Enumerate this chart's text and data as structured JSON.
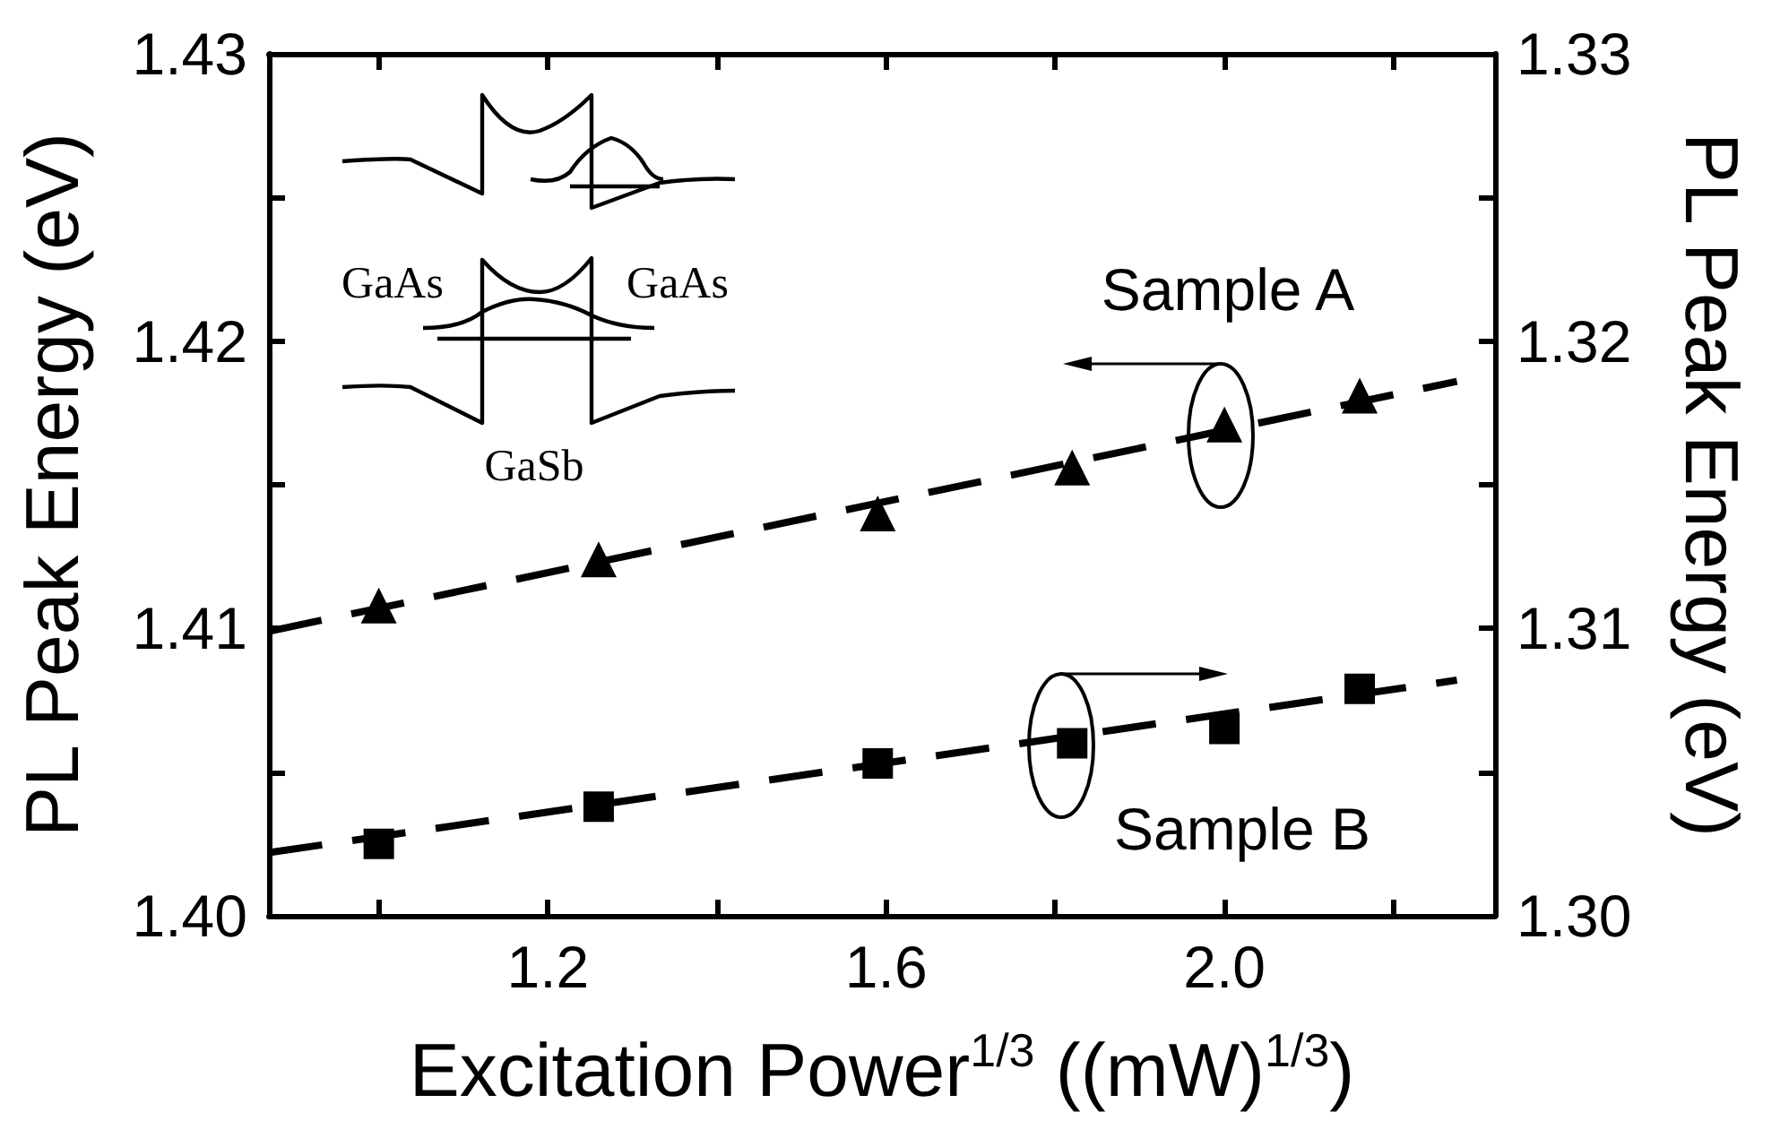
{
  "chart_data": {
    "type": "scatter",
    "xlabel": "Excitation Power$^{1/3}$ ((mW)$^{1/3}$)",
    "ylabel": "PL Peak Energy (eV)",
    "y2label": "PL Peak Energy (eV)",
    "xlim": [
      0.87,
      2.32
    ],
    "xticks": [
      {
        "value": 1.0,
        "label": null
      },
      1.2,
      {
        "value": 1.4,
        "label": null
      },
      1.6,
      {
        "value": 1.8,
        "label": null
      },
      {
        "value": 2.0,
        "label": "2.0"
      },
      {
        "value": 2.2,
        "label": null
      }
    ],
    "ylim": [
      1.4,
      1.43
    ],
    "yticks": [
      {
        "value": 1.4,
        "label": "1.40"
      },
      {
        "value": 1.405,
        "label": null
      },
      1.41,
      {
        "value": 1.415,
        "label": null
      },
      1.42,
      {
        "value": 1.425,
        "label": null
      },
      1.43
    ],
    "y2lim": [
      1.3,
      1.33
    ],
    "y2ticks": [
      {
        "value": 1.3,
        "label": "1.30"
      },
      {
        "value": 1.305,
        "label": null
      },
      1.31,
      {
        "value": 1.315,
        "label": null
      },
      1.32,
      {
        "value": 1.325,
        "label": null
      },
      1.33
    ],
    "grid": false,
    "annotations": [
      "GaAs",
      "GaAs",
      "GaSb"
    ],
    "series": [
      {
        "name": "Sample A",
        "marker": "triangle",
        "color": "#000000",
        "x": [
          1.0,
          1.26,
          1.59,
          1.82,
          2.0,
          2.16
        ],
        "values": [
          1.4108,
          1.4124,
          1.414,
          1.4156,
          1.4171,
          1.4181
        ]
      },
      {
        "name": "Sample B",
        "marker": "square",
        "axis": "y2",
        "color": "#000000",
        "x": [
          1.0,
          1.26,
          1.59,
          1.82,
          2.0,
          2.16
        ],
        "values": [
          1.3025,
          1.3038,
          1.3053,
          1.306,
          1.3065,
          1.3079
        ]
      },
      {
        "type": "line",
        "marker": "none",
        "line_style": "dashed",
        "color": "#000000",
        "x": [
          0.87,
          2.275
        ],
        "values": [
          1.4099,
          1.4186
        ]
      },
      {
        "type": "line",
        "marker": "none",
        "line_style": "dashed",
        "axis": "y2",
        "color": "#000000",
        "x": [
          0.87,
          2.275
        ],
        "values": [
          1.3022,
          1.3082
        ]
      }
    ]
  }
}
